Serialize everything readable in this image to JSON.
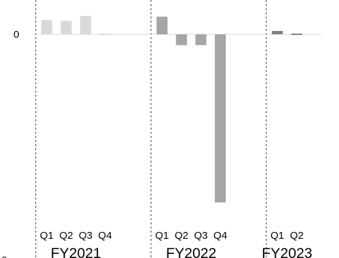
{
  "chart_data": {
    "type": "bar",
    "groups": [
      {
        "label": "FY2021",
        "categories": [
          "Q1",
          "Q2",
          "Q3",
          "Q4"
        ],
        "values": [
          21,
          20,
          27,
          2
        ],
        "color": "#d9d9d9"
      },
      {
        "label": "FY2022",
        "categories": [
          "Q1",
          "Q2",
          "Q3",
          "Q4"
        ],
        "values": [
          26,
          -16,
          -16,
          -248
        ],
        "color": "#a6a6a6"
      },
      {
        "label": "FY2023",
        "categories": [
          "Q1",
          "Q2"
        ],
        "values": [
          5,
          -1
        ],
        "color": "#808080"
      }
    ],
    "y_tick_labels": [
      "0"
    ],
    "zero_value": 0,
    "ylim": [
      -280,
      48
    ],
    "grid": false,
    "group_separators": "dashed",
    "edge_label_left": "o"
  }
}
